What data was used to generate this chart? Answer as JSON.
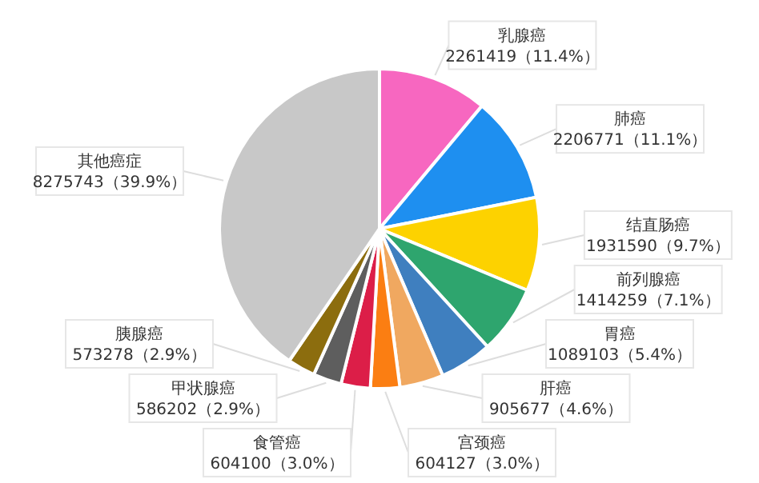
{
  "chart_data": {
    "type": "pie",
    "categories": [
      "乳腺癌",
      "肺癌",
      "结直肠癌",
      "前列腺癌",
      "胃癌",
      "肝癌",
      "宫颈癌",
      "食管癌",
      "甲状腺癌",
      "胰腺癌",
      "其他癌症"
    ],
    "values": [
      2261419,
      2206771,
      1931590,
      1414259,
      1089103,
      905677,
      604127,
      604100,
      586202,
      573278,
      8275743
    ],
    "value_labels": [
      "2261419（11.4%）",
      "2206771（11.1%）",
      "1931590（9.7%）",
      "1414259（7.1%）",
      "1089103（5.4%）",
      "905677（4.6%）",
      "604127（3.0%）",
      "604100（3.0%）",
      "586202（2.9%）",
      "573278（2.9%）",
      "8275743（39.9%）"
    ],
    "colors": [
      "#f767c0",
      "#1e8ff0",
      "#fdd200",
      "#2ea56e",
      "#3f7fbf",
      "#f0a860",
      "#fb7e12",
      "#dc1e48",
      "#5e5e5e",
      "#8c6d0e",
      "#c8c8c8"
    ],
    "legend": false
  }
}
